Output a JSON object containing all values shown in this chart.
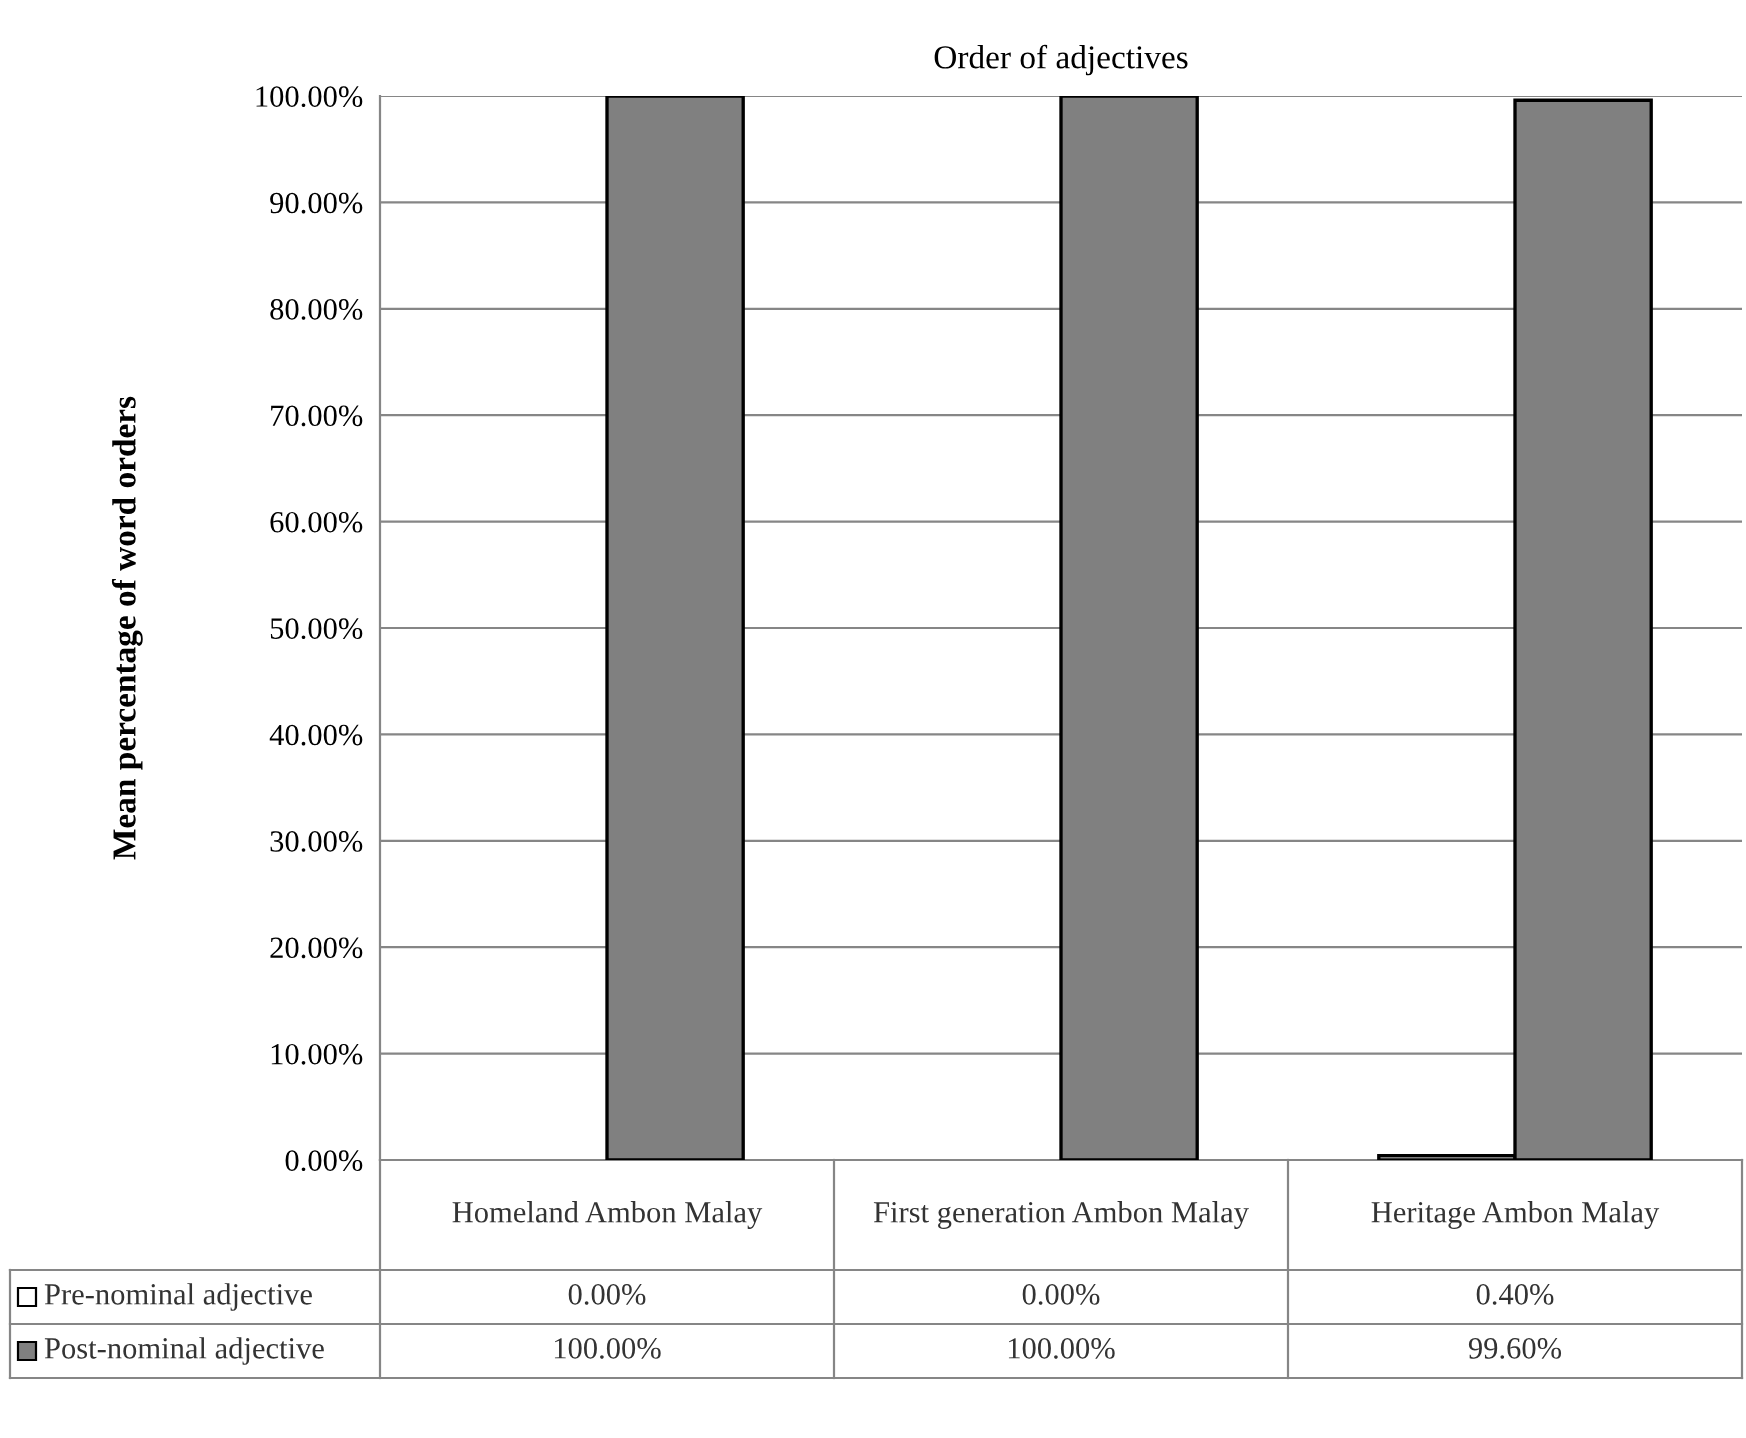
{
  "chart_data": {
    "type": "bar",
    "title": "Order of adjectives",
    "ylabel": "Mean percentage of word orders",
    "categories": [
      "Homeland Ambon Malay",
      "First generation Ambon Malay",
      "Heritage Ambon Malay"
    ],
    "series": [
      {
        "name": "Pre-nominal adjective",
        "color": "#ffffff",
        "values": [
          0,
          0,
          0.4
        ],
        "value_labels": [
          "0.00%",
          "0.00%",
          "0.40%"
        ]
      },
      {
        "name": "Post-nominal adjective",
        "color": "#808080",
        "values": [
          100,
          100,
          99.6
        ],
        "value_labels": [
          "100.00%",
          "100.00%",
          "99.60%"
        ]
      }
    ],
    "ylim": [
      0,
      100
    ],
    "yticks": [
      {
        "value": 0,
        "label": "0.00%"
      },
      {
        "value": 10,
        "label": "10.00%"
      },
      {
        "value": 20,
        "label": "20.00%"
      },
      {
        "value": 30,
        "label": "30.00%"
      },
      {
        "value": 40,
        "label": "40.00%"
      },
      {
        "value": 50,
        "label": "50.00%"
      },
      {
        "value": 60,
        "label": "60.00%"
      },
      {
        "value": 70,
        "label": "70.00%"
      },
      {
        "value": 80,
        "label": "80.00%"
      },
      {
        "value": 90,
        "label": "90.00%"
      },
      {
        "value": 100,
        "label": "100.00%"
      }
    ],
    "grid": "y",
    "legend": "bottom",
    "data_labels": true
  }
}
